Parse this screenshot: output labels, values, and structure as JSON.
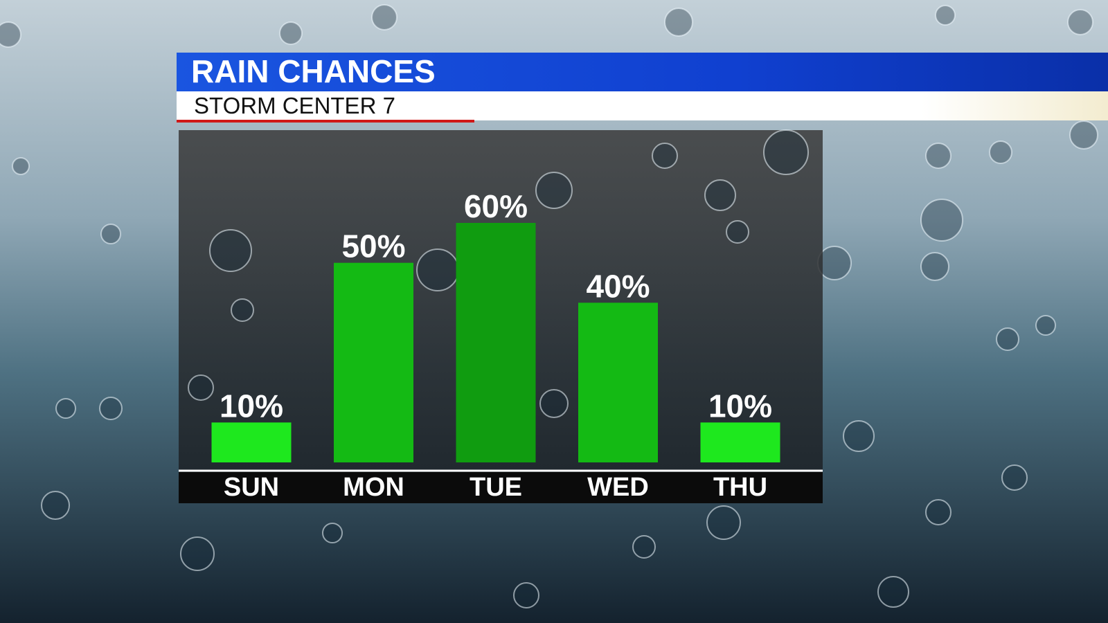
{
  "chart_data": {
    "type": "bar",
    "title": "RAIN CHANCES",
    "subtitle": "STORM CENTER 7",
    "categories": [
      "SUN",
      "MON",
      "TUE",
      "WED",
      "THU"
    ],
    "values": [
      10,
      50,
      60,
      40,
      10
    ],
    "value_labels": [
      "10%",
      "50%",
      "60%",
      "40%",
      "10%"
    ],
    "colors": [
      "#1ee81e",
      "#14ba14",
      "#109c10",
      "#14ba14",
      "#1ee81e"
    ]
  }
}
